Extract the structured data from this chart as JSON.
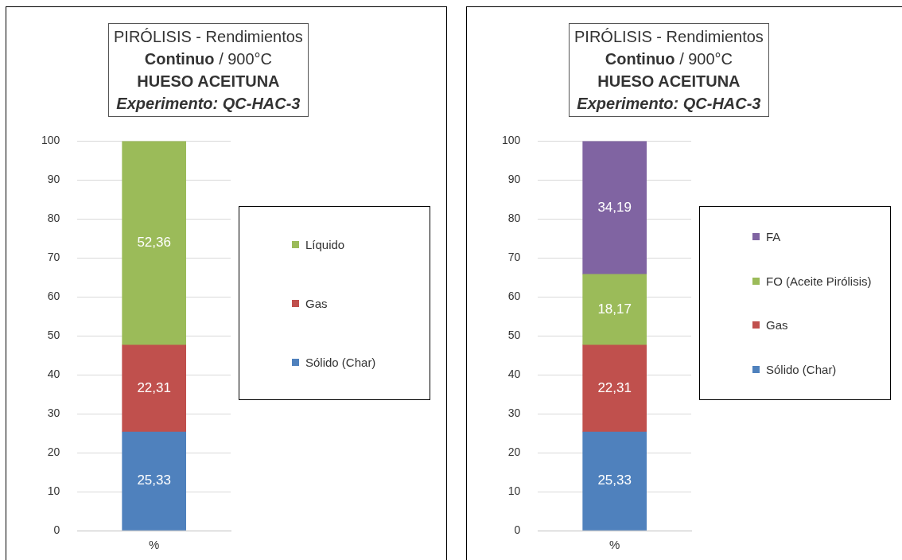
{
  "chart_data": [
    {
      "type": "bar",
      "title": "PIRÓLISIS - Rendimientos\nContinuo / 900°C\nHUESO ACEITUNA\nExperimento: QC-HAC-3",
      "categories": [
        "%"
      ],
      "stacked": true,
      "ylim": [
        0,
        100
      ],
      "yticks": [
        0,
        10,
        20,
        30,
        40,
        50,
        60,
        70,
        80,
        90,
        100
      ],
      "grid": "y",
      "legend": "right",
      "series": [
        {
          "name": "Sólido (Char)",
          "color": "#4f81bd",
          "values": [
            25.33
          ],
          "value_labels": [
            "25,33"
          ]
        },
        {
          "name": "Gas",
          "color": "#c0504d",
          "values": [
            22.31
          ],
          "value_labels": [
            "22,31"
          ]
        },
        {
          "name": "Líquido",
          "color": "#9bbb59",
          "values": [
            52.36
          ],
          "value_labels": [
            "52,36"
          ]
        }
      ]
    },
    {
      "type": "bar",
      "title": "PIRÓLISIS - Rendimientos\nContinuo / 900°C\nHUESO ACEITUNA\nExperimento: QC-HAC-3",
      "categories": [
        "%"
      ],
      "stacked": true,
      "ylim": [
        0,
        100
      ],
      "yticks": [
        0,
        10,
        20,
        30,
        40,
        50,
        60,
        70,
        80,
        90,
        100
      ],
      "grid": "y",
      "legend": "right",
      "series": [
        {
          "name": "Sólido (Char)",
          "color": "#4f81bd",
          "values": [
            25.33
          ],
          "value_labels": [
            "25,33"
          ]
        },
        {
          "name": "Gas",
          "color": "#c0504d",
          "values": [
            22.31
          ],
          "value_labels": [
            "22,31"
          ]
        },
        {
          "name": "FO (Aceite Pirólisis)",
          "color": "#9bbb59",
          "values": [
            18.17
          ],
          "value_labels": [
            "18,17"
          ]
        },
        {
          "name": "FA",
          "color": "#8064a2",
          "values": [
            34.19
          ],
          "value_labels": [
            "34,19"
          ]
        }
      ]
    }
  ]
}
